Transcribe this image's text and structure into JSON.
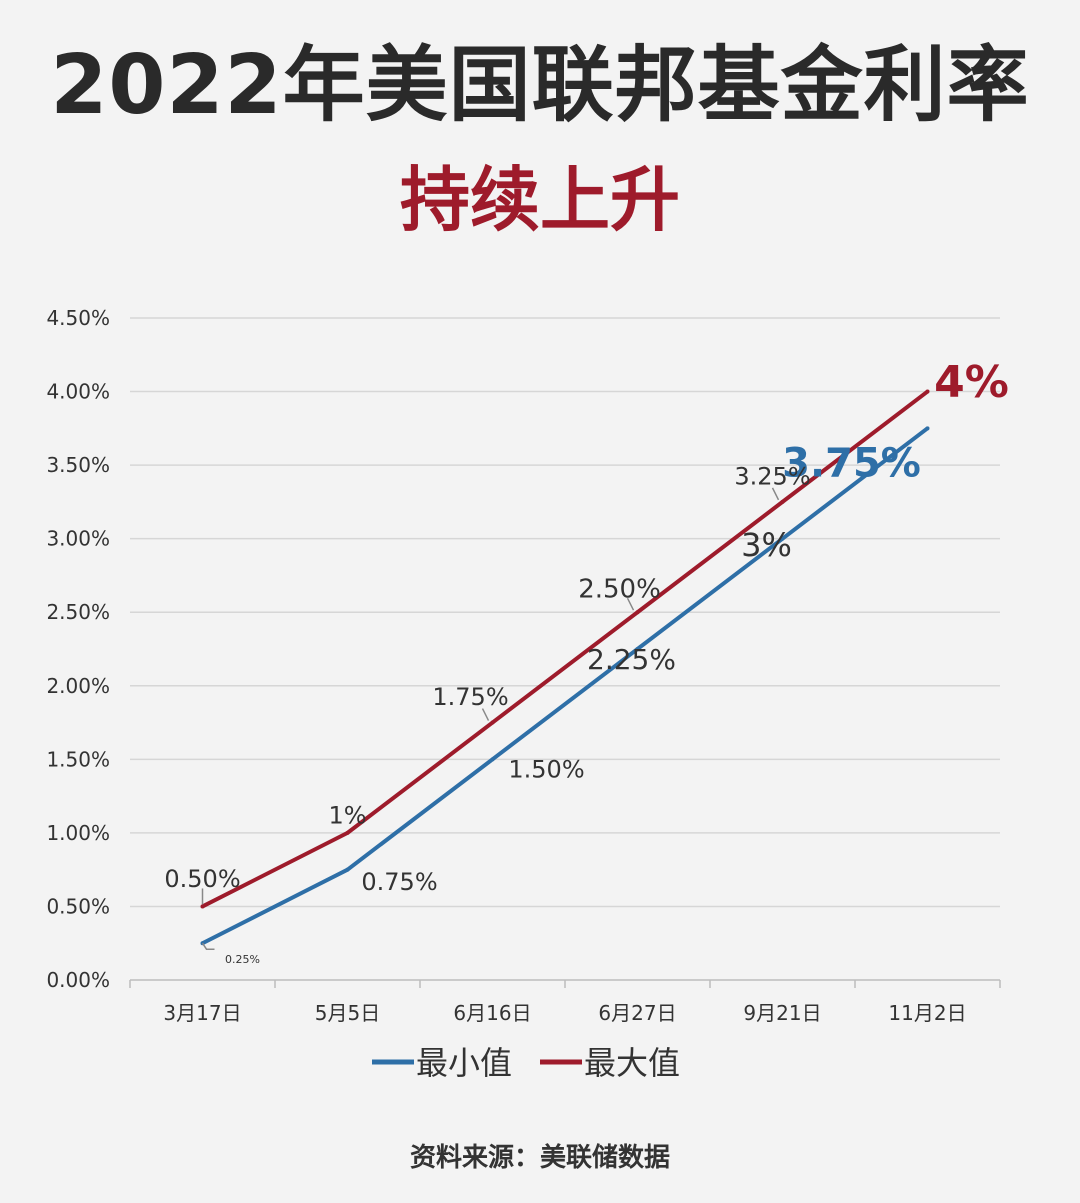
{
  "title": "2022年美国联邦基金利率",
  "subtitle": "持续上升",
  "source": "资料来源：美联储数据",
  "colors": {
    "min": "#2e6fa7",
    "max": "#9e1b2b",
    "grid": "#d6d6d6",
    "text": "#333333"
  },
  "chart_data": {
    "type": "line",
    "categories": [
      "3月17日",
      "5月5日",
      "6月16日",
      "6月27日",
      "9月21日",
      "11月2日"
    ],
    "x": [
      0.5,
      1.5,
      2.5,
      3.5,
      4.5,
      5.5
    ],
    "y_ticks": [
      "0.00%",
      "0.50%",
      "1.00%",
      "1.50%",
      "2.00%",
      "2.50%",
      "3.00%",
      "3.50%",
      "4.00%",
      "4.50%"
    ],
    "ylim": [
      0,
      4.5
    ],
    "grid": true,
    "legend": "bottom",
    "series": [
      {
        "name": "最小值",
        "color": "#2e6fa7",
        "points": [
          [
            0.5,
            0.25
          ],
          [
            1.5,
            0.75
          ],
          [
            2.5,
            1.5
          ],
          [
            3.5,
            2.25
          ],
          [
            4.5,
            3.0
          ],
          [
            5.5,
            3.75
          ]
        ],
        "labels": [
          "0.25%",
          "0.75%",
          "1.50%",
          "2.25%",
          "3%",
          "3.75%"
        ]
      },
      {
        "name": "最大值",
        "color": "#9e1b2b",
        "points": [
          [
            0.5,
            0.5
          ],
          [
            1.5,
            1.0
          ],
          [
            2.5,
            1.75
          ],
          [
            3.5,
            2.5
          ],
          [
            4.5,
            3.25
          ],
          [
            5.5,
            4.0
          ]
        ],
        "labels": [
          "0.50%",
          "1%",
          "1.75%",
          "2.50%",
          "3.25%",
          "4%"
        ]
      }
    ]
  }
}
